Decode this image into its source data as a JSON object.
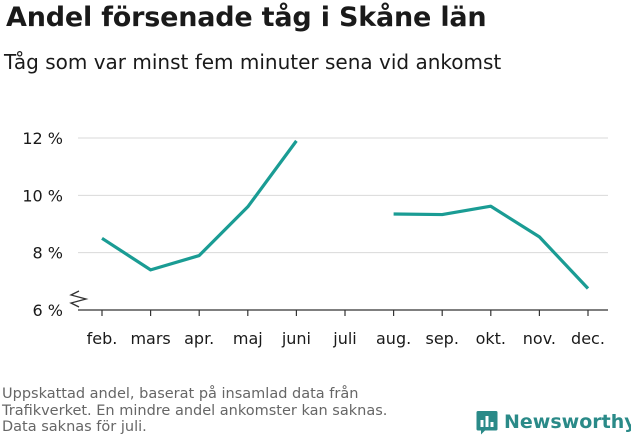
{
  "title": "Andel försenade tåg i Skåne län",
  "subtitle": "Tåg som var minst fem minuter sena vid ankomst",
  "footnote": {
    "line1": "Uppskattad andel, baserat på insamlad data från",
    "line2": "Trafikverket. En mindre andel ankomster kan saknas.",
    "line3": "Data saknas för juli."
  },
  "brand": {
    "name": "Newsworthy",
    "color": "#2a8a88"
  },
  "colors": {
    "line": "#1a9c94",
    "grid": "#d9d9d9",
    "axis": "#333333"
  },
  "chart_data": {
    "type": "line",
    "title": "Andel försenade tåg i Skåne län",
    "subtitle": "Tåg som var minst fem minuter sena vid ankomst",
    "categories": [
      "feb.",
      "mars",
      "apr.",
      "maj",
      "juni",
      "juli",
      "aug.",
      "sep.",
      "okt.",
      "nov.",
      "dec."
    ],
    "series": [
      {
        "values": [
          8.5,
          7.4,
          7.9,
          9.6,
          11.9,
          null,
          9.35,
          9.33,
          9.62,
          8.55,
          6.75
        ]
      }
    ],
    "ylim": [
      6,
      12
    ],
    "yticks": [
      6,
      8,
      10,
      12
    ],
    "ytick_labels": [
      "6 %",
      "8 %",
      "10 %",
      "12 %"
    ],
    "y_axis_break": true,
    "grid": true,
    "legend": "none"
  }
}
